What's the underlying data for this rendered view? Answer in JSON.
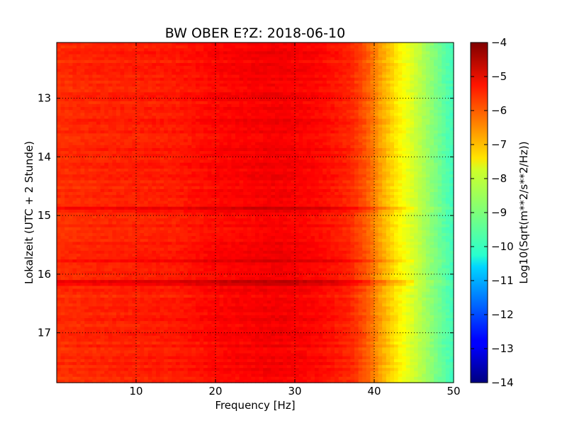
{
  "chart_data": {
    "type": "heatmap",
    "title": "BW OBER E?Z: 2018-06-10",
    "xlabel": "Frequency [Hz]",
    "ylabel": "Lokalzeit (UTC + 2 Stunde)",
    "colorbar_label": "Log10(Sqrt(m**2/s**2/Hz))",
    "xlim": [
      0,
      50
    ],
    "ylim": [
      12.05,
      17.85
    ],
    "y_inverted": true,
    "x_ticks": [
      10,
      20,
      30,
      40,
      50
    ],
    "x_tick_labels": [
      "10",
      "20",
      "30",
      "40",
      "50"
    ],
    "y_ticks": [
      13,
      14,
      15,
      16,
      17
    ],
    "y_tick_labels": [
      "13",
      "14",
      "15",
      "16",
      "17"
    ],
    "color_range": [
      -14,
      -4
    ],
    "colorbar_ticks": [
      -4,
      -5,
      -6,
      -7,
      -8,
      -9,
      -10,
      -11,
      -12,
      -13,
      -14
    ],
    "colorbar_tick_labels": [
      "−4",
      "−5",
      "−6",
      "−7",
      "−8",
      "−9",
      "−10",
      "−11",
      "−12",
      "−13",
      "−14"
    ],
    "colormap": "jet",
    "grid": true,
    "grid_style": "dotted",
    "spectrum_profile": {
      "frequency_hz": [
        0,
        5,
        10,
        15,
        20,
        25,
        28,
        33,
        37,
        39,
        41,
        43,
        45,
        47,
        49,
        50
      ],
      "log10_amplitude": [
        -5.7,
        -5.6,
        -5.55,
        -5.5,
        -5.3,
        -5.2,
        -5.15,
        -5.3,
        -5.6,
        -6.1,
        -6.9,
        -7.6,
        -8.2,
        -8.8,
        -9.4,
        -9.6
      ]
    },
    "strong_bands_local_time": [
      15.77,
      14.87,
      16.15
    ],
    "colors": {
      "axis": "#000000",
      "grid": "#000000",
      "background": "#ffffff"
    }
  }
}
